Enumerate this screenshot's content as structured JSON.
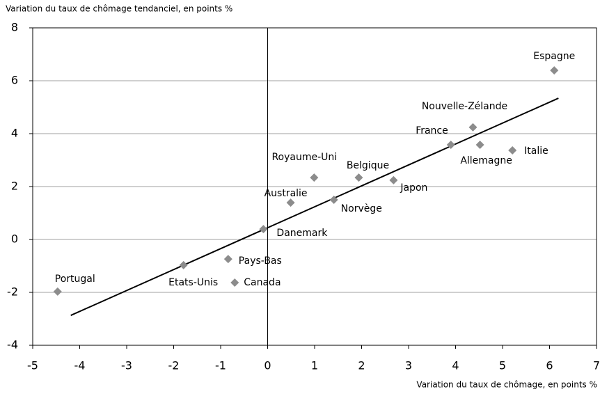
{
  "chart_data": {
    "type": "scatter",
    "title": "Variation du taux de chômage tendanciel, en points %",
    "x_label": "Variation du taux de chômage, en points %",
    "names": [
      "Espagne",
      "Nouvelle-Zélande",
      "France",
      "Allemagne",
      "Italie",
      "Royaume-Uni",
      "Belgique",
      "Japon",
      "Australie",
      "Norvège",
      "Danemark",
      "Pays-Bas",
      "Etats-Unis",
      "Canada",
      "Portugal"
    ],
    "x": [
      6.1,
      4.37,
      3.9,
      4.52,
      5.21,
      0.99,
      1.94,
      2.68,
      0.49,
      1.41,
      -0.09,
      -0.84,
      -1.79,
      -0.7,
      -4.47
    ],
    "y": [
      6.39,
      4.24,
      3.58,
      3.58,
      3.37,
      2.34,
      2.34,
      2.24,
      1.39,
      1.5,
      0.39,
      -0.74,
      -0.97,
      -1.63,
      -1.97
    ],
    "color": "#8c8c8c",
    "trendline": {
      "x": [
        -4.19,
        6.19
      ],
      "y": [
        -2.87,
        5.34
      ],
      "color": "#000000"
    },
    "xlim": [
      -5,
      7
    ],
    "xticks": [
      -5,
      -4,
      -3,
      -2,
      -1,
      0,
      1,
      2,
      3,
      4,
      5,
      6,
      7
    ],
    "ylim": [
      -4,
      8
    ],
    "yticks": [
      -4,
      -2,
      0,
      2,
      4,
      6,
      8
    ],
    "grid": true
  }
}
